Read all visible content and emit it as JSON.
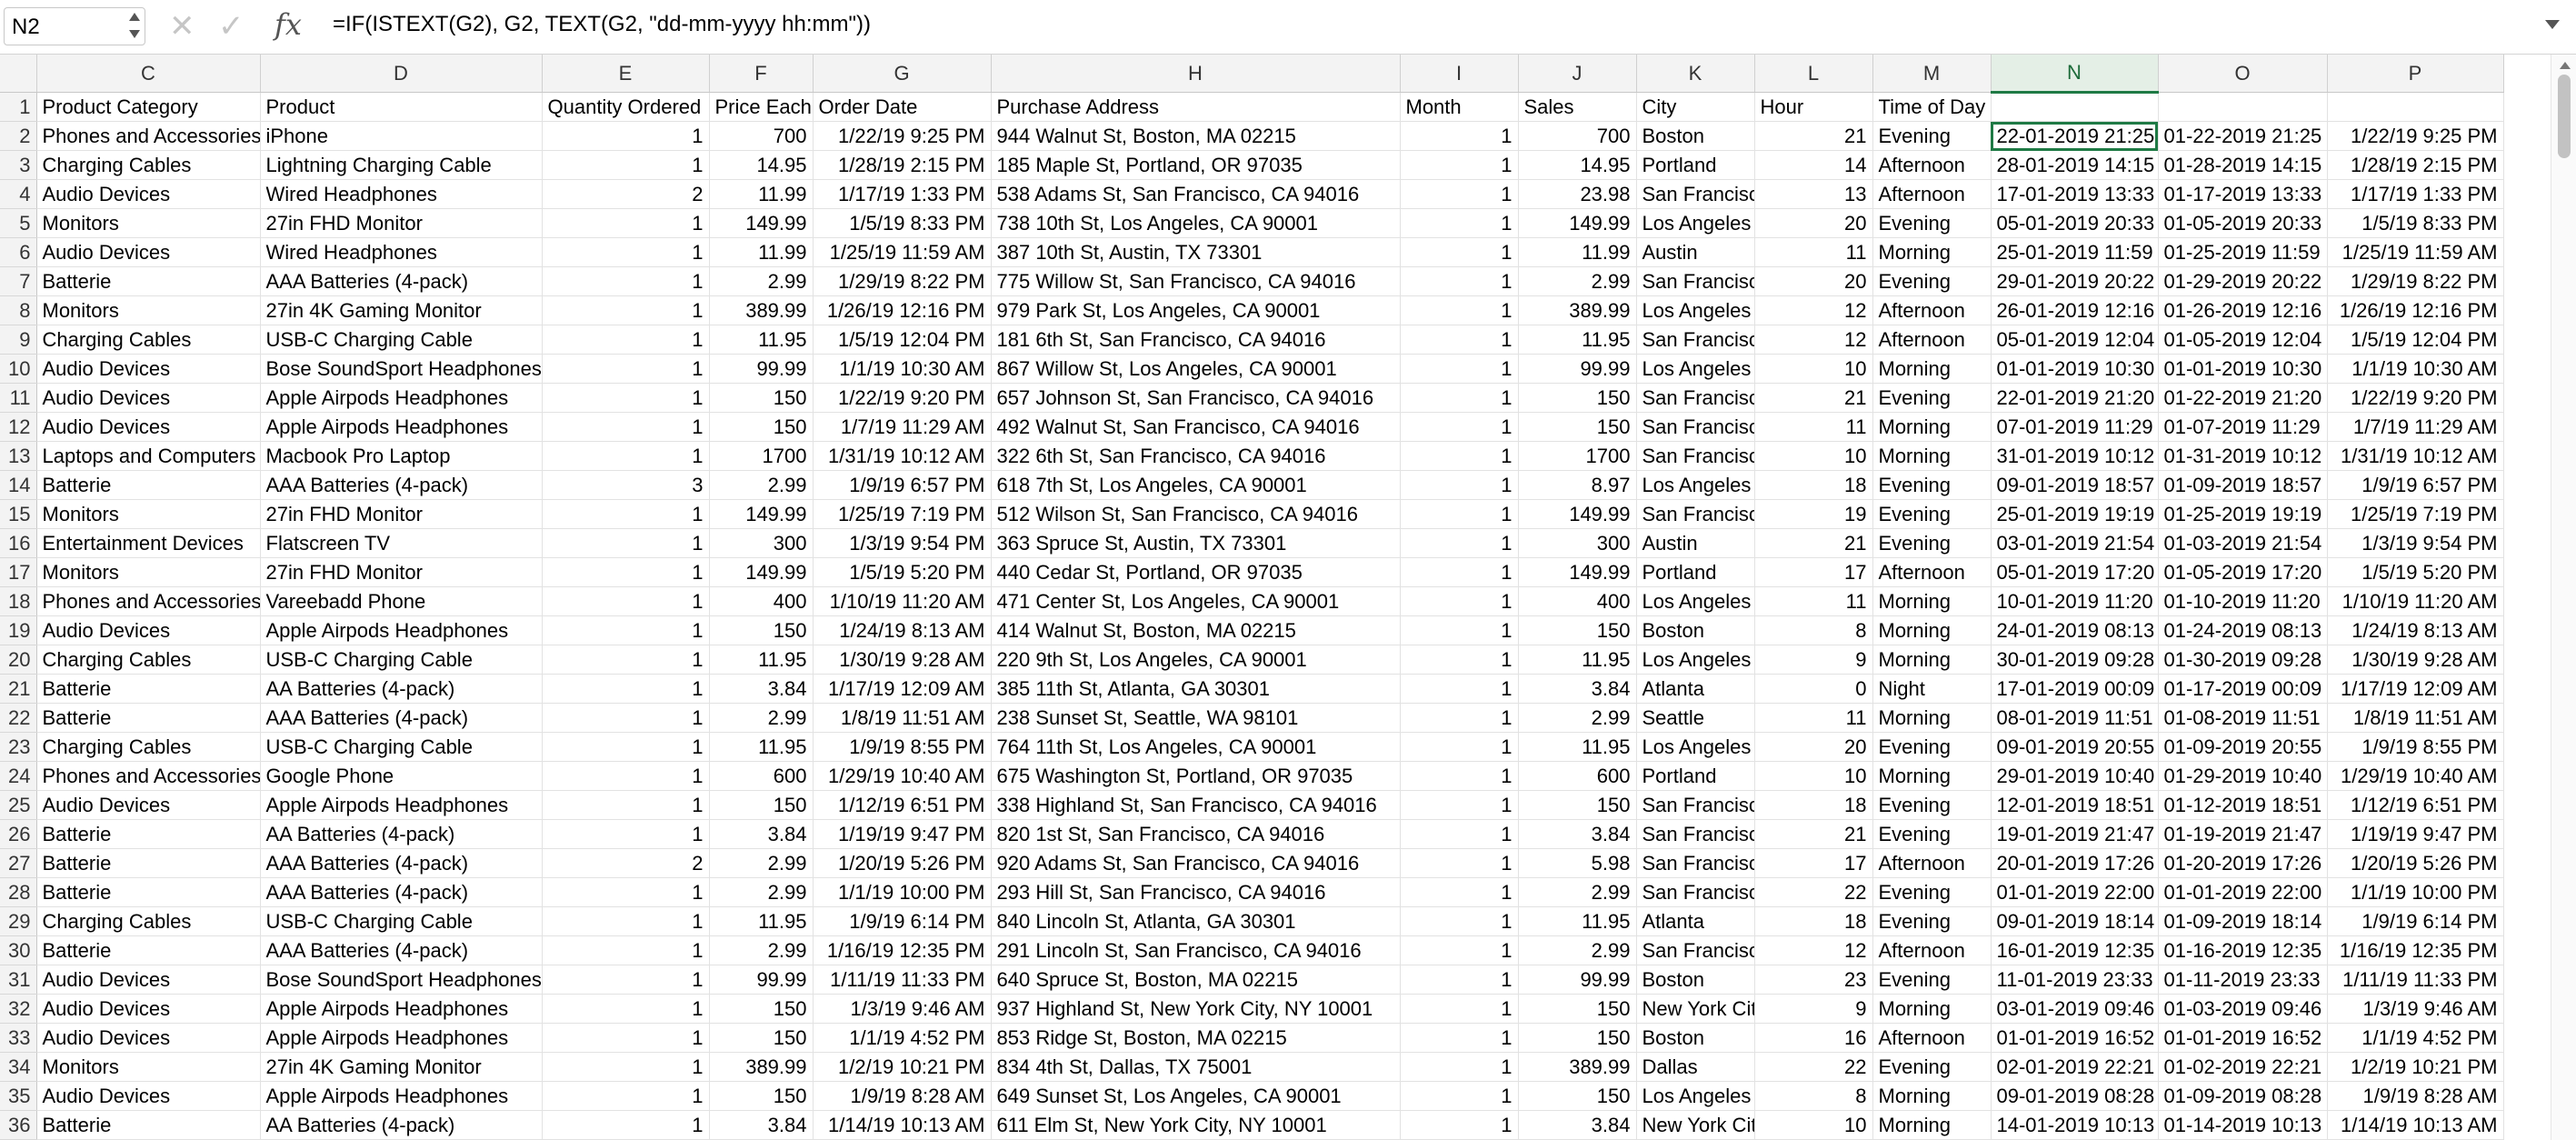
{
  "formula_bar": {
    "name_box": "N2",
    "formula": "=IF(ISTEXT(G2), G2, TEXT(G2, \"dd-mm-yyyy hh:mm\"))",
    "cancel_icon": "✕",
    "confirm_icon": "✓",
    "fx_label": "fx"
  },
  "grid": {
    "active_cell": "N2",
    "columns": [
      "C",
      "D",
      "E",
      "F",
      "G",
      "H",
      "I",
      "J",
      "K",
      "L",
      "M",
      "N",
      "O",
      "P"
    ],
    "rows": [
      {
        "n": "1",
        "cells": [
          "Product Category",
          "Product",
          "Quantity Ordered",
          "Price Each",
          "Order Date",
          "Purchase Address",
          "Month",
          "Sales",
          "City",
          "Hour",
          "Time of Day",
          "",
          "",
          ""
        ]
      },
      {
        "n": "2",
        "cells": [
          "Phones and Accessories",
          "iPhone",
          "1",
          "700",
          "1/22/19 9:25 PM",
          "944 Walnut St, Boston, MA 02215",
          "1",
          "700",
          "Boston",
          "21",
          "Evening",
          "22-01-2019 21:25",
          "01-22-2019 21:25",
          "1/22/19 9:25 PM"
        ]
      },
      {
        "n": "3",
        "cells": [
          "Charging Cables",
          "Lightning Charging Cable",
          "1",
          "14.95",
          "1/28/19 2:15 PM",
          "185 Maple St, Portland, OR 97035",
          "1",
          "14.95",
          "Portland",
          "14",
          "Afternoon",
          "28-01-2019 14:15",
          "01-28-2019 14:15",
          "1/28/19 2:15 PM"
        ]
      },
      {
        "n": "4",
        "cells": [
          "Audio Devices",
          "Wired Headphones",
          "2",
          "11.99",
          "1/17/19 1:33 PM",
          "538 Adams St, San Francisco, CA 94016",
          "1",
          "23.98",
          "San Francisc",
          "13",
          "Afternoon",
          "17-01-2019 13:33",
          "01-17-2019 13:33",
          "1/17/19 1:33 PM"
        ]
      },
      {
        "n": "5",
        "cells": [
          "Monitors",
          "27in FHD Monitor",
          "1",
          "149.99",
          "1/5/19 8:33 PM",
          "738 10th St, Los Angeles, CA 90001",
          "1",
          "149.99",
          "Los Angeles",
          "20",
          "Evening",
          "05-01-2019 20:33",
          "01-05-2019 20:33",
          "1/5/19 8:33 PM"
        ]
      },
      {
        "n": "6",
        "cells": [
          "Audio Devices",
          "Wired Headphones",
          "1",
          "11.99",
          "1/25/19 11:59 AM",
          "387 10th St, Austin, TX 73301",
          "1",
          "11.99",
          "Austin",
          "11",
          "Morning",
          "25-01-2019 11:59",
          "01-25-2019 11:59",
          "1/25/19 11:59 AM"
        ]
      },
      {
        "n": "7",
        "cells": [
          "Batterie",
          "AAA Batteries (4-pack)",
          "1",
          "2.99",
          "1/29/19 8:22 PM",
          "775 Willow St, San Francisco, CA 94016",
          "1",
          "2.99",
          "San Francisc",
          "20",
          "Evening",
          "29-01-2019 20:22",
          "01-29-2019 20:22",
          "1/29/19 8:22 PM"
        ]
      },
      {
        "n": "8",
        "cells": [
          "Monitors",
          "27in 4K Gaming Monitor",
          "1",
          "389.99",
          "1/26/19 12:16 PM",
          "979 Park St, Los Angeles, CA 90001",
          "1",
          "389.99",
          "Los Angeles",
          "12",
          "Afternoon",
          "26-01-2019 12:16",
          "01-26-2019 12:16",
          "1/26/19 12:16 PM"
        ]
      },
      {
        "n": "9",
        "cells": [
          "Charging Cables",
          "USB-C Charging Cable",
          "1",
          "11.95",
          "1/5/19 12:04 PM",
          "181 6th St, San Francisco, CA 94016",
          "1",
          "11.95",
          "San Francisc",
          "12",
          "Afternoon",
          "05-01-2019 12:04",
          "01-05-2019 12:04",
          "1/5/19 12:04 PM"
        ]
      },
      {
        "n": "10",
        "cells": [
          "Audio Devices",
          "Bose SoundSport Headphones",
          "1",
          "99.99",
          "1/1/19 10:30 AM",
          "867 Willow St, Los Angeles, CA 90001",
          "1",
          "99.99",
          "Los Angeles",
          "10",
          "Morning",
          "01-01-2019 10:30",
          "01-01-2019 10:30",
          "1/1/19 10:30 AM"
        ]
      },
      {
        "n": "11",
        "cells": [
          "Audio Devices",
          "Apple Airpods Headphones",
          "1",
          "150",
          "1/22/19 9:20 PM",
          "657 Johnson St, San Francisco, CA 94016",
          "1",
          "150",
          "San Francisc",
          "21",
          "Evening",
          "22-01-2019 21:20",
          "01-22-2019 21:20",
          "1/22/19 9:20 PM"
        ]
      },
      {
        "n": "12",
        "cells": [
          "Audio Devices",
          "Apple Airpods Headphones",
          "1",
          "150",
          "1/7/19 11:29 AM",
          "492 Walnut St, San Francisco, CA 94016",
          "1",
          "150",
          "San Francisc",
          "11",
          "Morning",
          "07-01-2019 11:29",
          "01-07-2019 11:29",
          "1/7/19 11:29 AM"
        ]
      },
      {
        "n": "13",
        "cells": [
          "Laptops and Computers",
          "Macbook Pro Laptop",
          "1",
          "1700",
          "1/31/19 10:12 AM",
          "322 6th St, San Francisco, CA 94016",
          "1",
          "1700",
          "San Francisc",
          "10",
          "Morning",
          "31-01-2019 10:12",
          "01-31-2019 10:12",
          "1/31/19 10:12 AM"
        ]
      },
      {
        "n": "14",
        "cells": [
          "Batterie",
          "AAA Batteries (4-pack)",
          "3",
          "2.99",
          "1/9/19 6:57 PM",
          "618 7th St, Los Angeles, CA 90001",
          "1",
          "8.97",
          "Los Angeles",
          "18",
          "Evening",
          "09-01-2019 18:57",
          "01-09-2019 18:57",
          "1/9/19 6:57 PM"
        ]
      },
      {
        "n": "15",
        "cells": [
          "Monitors",
          "27in FHD Monitor",
          "1",
          "149.99",
          "1/25/19 7:19 PM",
          "512 Wilson St, San Francisco, CA 94016",
          "1",
          "149.99",
          "San Francisc",
          "19",
          "Evening",
          "25-01-2019 19:19",
          "01-25-2019 19:19",
          "1/25/19 7:19 PM"
        ]
      },
      {
        "n": "16",
        "cells": [
          "Entertainment Devices",
          "Flatscreen TV",
          "1",
          "300",
          "1/3/19 9:54 PM",
          "363 Spruce St, Austin, TX 73301",
          "1",
          "300",
          "Austin",
          "21",
          "Evening",
          "03-01-2019 21:54",
          "01-03-2019 21:54",
          "1/3/19 9:54 PM"
        ]
      },
      {
        "n": "17",
        "cells": [
          "Monitors",
          "27in FHD Monitor",
          "1",
          "149.99",
          "1/5/19 5:20 PM",
          "440 Cedar St, Portland, OR 97035",
          "1",
          "149.99",
          "Portland",
          "17",
          "Afternoon",
          "05-01-2019 17:20",
          "01-05-2019 17:20",
          "1/5/19 5:20 PM"
        ]
      },
      {
        "n": "18",
        "cells": [
          "Phones and Accessories",
          "Vareebadd Phone",
          "1",
          "400",
          "1/10/19 11:20 AM",
          "471 Center St, Los Angeles, CA 90001",
          "1",
          "400",
          "Los Angeles",
          "11",
          "Morning",
          "10-01-2019 11:20",
          "01-10-2019 11:20",
          "1/10/19 11:20 AM"
        ]
      },
      {
        "n": "19",
        "cells": [
          "Audio Devices",
          "Apple Airpods Headphones",
          "1",
          "150",
          "1/24/19 8:13 AM",
          "414 Walnut St, Boston, MA 02215",
          "1",
          "150",
          "Boston",
          "8",
          "Morning",
          "24-01-2019 08:13",
          "01-24-2019 08:13",
          "1/24/19 8:13 AM"
        ]
      },
      {
        "n": "20",
        "cells": [
          "Charging Cables",
          "USB-C Charging Cable",
          "1",
          "11.95",
          "1/30/19 9:28 AM",
          "220 9th St, Los Angeles, CA 90001",
          "1",
          "11.95",
          "Los Angeles",
          "9",
          "Morning",
          "30-01-2019 09:28",
          "01-30-2019 09:28",
          "1/30/19 9:28 AM"
        ]
      },
      {
        "n": "21",
        "cells": [
          "Batterie",
          "AA Batteries (4-pack)",
          "1",
          "3.84",
          "1/17/19 12:09 AM",
          "385 11th St, Atlanta, GA 30301",
          "1",
          "3.84",
          "Atlanta",
          "0",
          "Night",
          "17-01-2019 00:09",
          "01-17-2019 00:09",
          "1/17/19 12:09 AM"
        ]
      },
      {
        "n": "22",
        "cells": [
          "Batterie",
          "AAA Batteries (4-pack)",
          "1",
          "2.99",
          "1/8/19 11:51 AM",
          "238 Sunset St, Seattle, WA 98101",
          "1",
          "2.99",
          "Seattle",
          "11",
          "Morning",
          "08-01-2019 11:51",
          "01-08-2019 11:51",
          "1/8/19 11:51 AM"
        ]
      },
      {
        "n": "23",
        "cells": [
          "Charging Cables",
          "USB-C Charging Cable",
          "1",
          "11.95",
          "1/9/19 8:55 PM",
          "764 11th St, Los Angeles, CA 90001",
          "1",
          "11.95",
          "Los Angeles",
          "20",
          "Evening",
          "09-01-2019 20:55",
          "01-09-2019 20:55",
          "1/9/19 8:55 PM"
        ]
      },
      {
        "n": "24",
        "cells": [
          "Phones and Accessories",
          "Google Phone",
          "1",
          "600",
          "1/29/19 10:40 AM",
          "675 Washington St, Portland, OR 97035",
          "1",
          "600",
          "Portland",
          "10",
          "Morning",
          "29-01-2019 10:40",
          "01-29-2019 10:40",
          "1/29/19 10:40 AM"
        ]
      },
      {
        "n": "25",
        "cells": [
          "Audio Devices",
          "Apple Airpods Headphones",
          "1",
          "150",
          "1/12/19 6:51 PM",
          "338 Highland St, San Francisco, CA 94016",
          "1",
          "150",
          "San Francisc",
          "18",
          "Evening",
          "12-01-2019 18:51",
          "01-12-2019 18:51",
          "1/12/19 6:51 PM"
        ]
      },
      {
        "n": "26",
        "cells": [
          "Batterie",
          "AA Batteries (4-pack)",
          "1",
          "3.84",
          "1/19/19 9:47 PM",
          "820 1st St, San Francisco, CA 94016",
          "1",
          "3.84",
          "San Francisc",
          "21",
          "Evening",
          "19-01-2019 21:47",
          "01-19-2019 21:47",
          "1/19/19 9:47 PM"
        ]
      },
      {
        "n": "27",
        "cells": [
          "Batterie",
          "AAA Batteries (4-pack)",
          "2",
          "2.99",
          "1/20/19 5:26 PM",
          "920 Adams St, San Francisco, CA 94016",
          "1",
          "5.98",
          "San Francisc",
          "17",
          "Afternoon",
          "20-01-2019 17:26",
          "01-20-2019 17:26",
          "1/20/19 5:26 PM"
        ]
      },
      {
        "n": "28",
        "cells": [
          "Batterie",
          "AAA Batteries (4-pack)",
          "1",
          "2.99",
          "1/1/19 10:00 PM",
          "293 Hill St, San Francisco, CA 94016",
          "1",
          "2.99",
          "San Francisc",
          "22",
          "Evening",
          "01-01-2019 22:00",
          "01-01-2019 22:00",
          "1/1/19 10:00 PM"
        ]
      },
      {
        "n": "29",
        "cells": [
          "Charging Cables",
          "USB-C Charging Cable",
          "1",
          "11.95",
          "1/9/19 6:14 PM",
          "840 Lincoln St, Atlanta, GA 30301",
          "1",
          "11.95",
          "Atlanta",
          "18",
          "Evening",
          "09-01-2019 18:14",
          "01-09-2019 18:14",
          "1/9/19 6:14 PM"
        ]
      },
      {
        "n": "30",
        "cells": [
          "Batterie",
          "AAA Batteries (4-pack)",
          "1",
          "2.99",
          "1/16/19 12:35 PM",
          "291 Lincoln St, San Francisco, CA 94016",
          "1",
          "2.99",
          "San Francisc",
          "12",
          "Afternoon",
          "16-01-2019 12:35",
          "01-16-2019 12:35",
          "1/16/19 12:35 PM"
        ]
      },
      {
        "n": "31",
        "cells": [
          "Audio Devices",
          "Bose SoundSport Headphones",
          "1",
          "99.99",
          "1/11/19 11:33 PM",
          "640 Spruce St, Boston, MA 02215",
          "1",
          "99.99",
          "Boston",
          "23",
          "Evening",
          "11-01-2019 23:33",
          "01-11-2019 23:33",
          "1/11/19 11:33 PM"
        ]
      },
      {
        "n": "32",
        "cells": [
          "Audio Devices",
          "Apple Airpods Headphones",
          "1",
          "150",
          "1/3/19 9:46 AM",
          "937 Highland St, New York City, NY 10001",
          "1",
          "150",
          "New York Cit",
          "9",
          "Morning",
          "03-01-2019 09:46",
          "01-03-2019 09:46",
          "1/3/19 9:46 AM"
        ]
      },
      {
        "n": "33",
        "cells": [
          "Audio Devices",
          "Apple Airpods Headphones",
          "1",
          "150",
          "1/1/19 4:52 PM",
          "853 Ridge St, Boston, MA 02215",
          "1",
          "150",
          "Boston",
          "16",
          "Afternoon",
          "01-01-2019 16:52",
          "01-01-2019 16:52",
          "1/1/19 4:52 PM"
        ]
      },
      {
        "n": "34",
        "cells": [
          "Monitors",
          "27in 4K Gaming Monitor",
          "1",
          "389.99",
          "1/2/19 10:21 PM",
          "834 4th St, Dallas, TX 75001",
          "1",
          "389.99",
          "Dallas",
          "22",
          "Evening",
          "02-01-2019 22:21",
          "01-02-2019 22:21",
          "1/2/19 10:21 PM"
        ]
      },
      {
        "n": "35",
        "cells": [
          "Audio Devices",
          "Apple Airpods Headphones",
          "1",
          "150",
          "1/9/19 8:28 AM",
          "649 Sunset St, Los Angeles, CA 90001",
          "1",
          "150",
          "Los Angeles",
          "8",
          "Morning",
          "09-01-2019 08:28",
          "01-09-2019 08:28",
          "1/9/19 8:28 AM"
        ]
      },
      {
        "n": "36",
        "cells": [
          "Batterie",
          "AA Batteries (4-pack)",
          "1",
          "3.84",
          "1/14/19 10:13 AM",
          "611 Elm St, New York City, NY 10001",
          "1",
          "3.84",
          "New York Cit",
          "10",
          "Morning",
          "14-01-2019 10:13",
          "01-14-2019 10:13",
          "1/14/19 10:13 AM"
        ]
      }
    ]
  },
  "colors": {
    "selection_accent": "#1f7a45",
    "header_bg": "#f3f3f3",
    "gridline": "#e2e2e2"
  }
}
